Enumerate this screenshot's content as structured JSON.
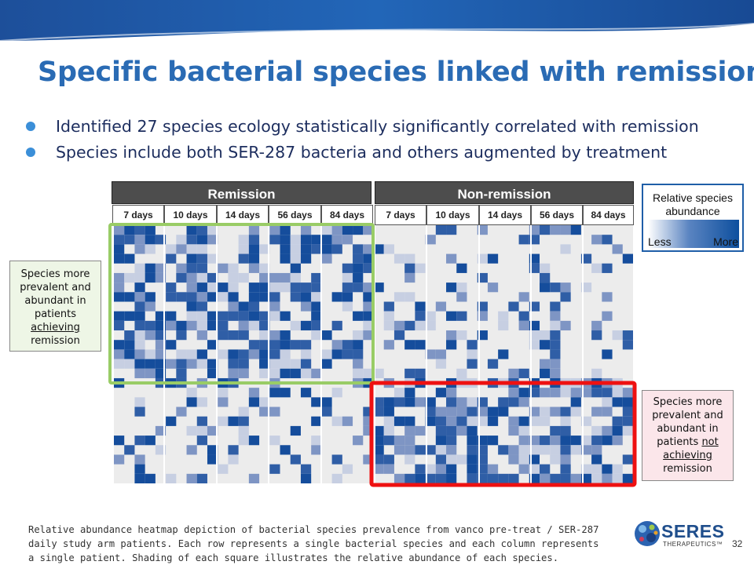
{
  "slide": {
    "title": "Specific bacterial species linked with remission",
    "bullets": [
      "Identified 27 species ecology statistically significantly correlated with remission",
      "Species include both SER-287 bacteria and others augmented by treatment"
    ],
    "page_number": "32"
  },
  "heatmap": {
    "groups": [
      "Remission",
      "Non-remission"
    ],
    "day_columns": [
      "7 days",
      "10 days",
      "14 days",
      "56 days",
      "84 days"
    ],
    "colors": {
      "empty": "#ececec",
      "low": "#c7cfe2",
      "mid": "#7e95c4",
      "high": "#2f5ea6",
      "max": "#154d9c",
      "remission_box": "#99cc66",
      "nonremission_box": "#ee1111"
    }
  },
  "legend": {
    "title": "Relative species abundance",
    "less": "Less",
    "more": "More"
  },
  "callouts": {
    "left": {
      "line1": "Species more",
      "line2": "prevalent and",
      "line3": "abundant in",
      "line4": "patients",
      "line5": "achieving",
      "line6": "remission"
    },
    "right": {
      "line1": "Species more",
      "line2": "prevalent and",
      "line3": "abundant in",
      "line4a": "patients ",
      "line4b": "not",
      "line5": "achieving",
      "line6": "remission"
    }
  },
  "footnote": "Relative abundance heatmap depiction of bacterial species prevalence from vanco pre-treat / SER-287 daily study arm patients. Each row represents a single bacterial species and each column represents a single patient. Shading of each square illustrates the relative abundance of each species.",
  "logo": {
    "name": "SERES",
    "sub": "THERAPEUTICS™"
  }
}
